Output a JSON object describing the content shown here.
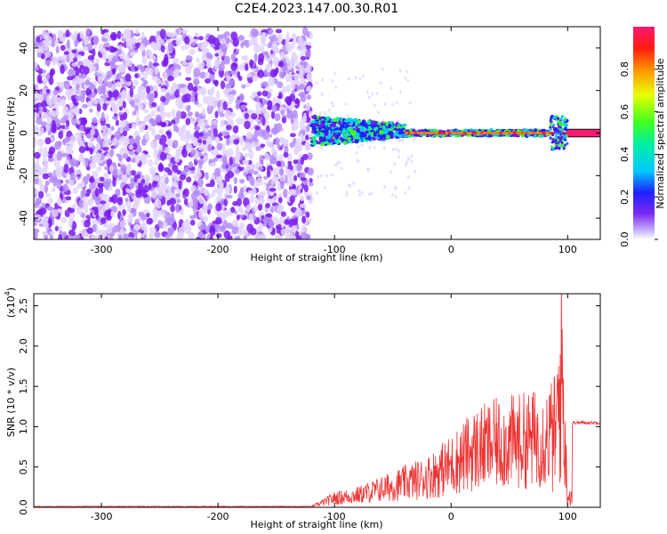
{
  "title": "C2E4.2023.147.00.30.R01",
  "colors": {
    "snr_line": "#ee3333",
    "axis": "#000000",
    "background": "#ffffff"
  },
  "chart_data": [
    {
      "type": "heatmap",
      "title": "C2E4.2023.147.00.30.R01",
      "xlabel": "Height of straight line (km)",
      "ylabel": "Frequency (Hz)",
      "xlim": [
        -358,
        128
      ],
      "ylim": [
        -50,
        50
      ],
      "x_ticks": [
        -300,
        -200,
        -100,
        0,
        100
      ],
      "y_ticks": [
        -40,
        -20,
        0,
        20,
        40
      ],
      "colorbar": {
        "label": "Normalized spectral amplitude",
        "range": [
          0.0,
          1.0
        ],
        "ticks": [
          "0.0",
          "0.2",
          "0.4",
          "0.6",
          "0.8"
        ],
        "colormap": "rainbow (purple-blue-cyan-green-yellow-red-magenta)"
      },
      "description_regions": [
        {
          "x_range": [
            -358,
            -120
          ],
          "freq_range": [
            -50,
            48
          ],
          "amplitude": "low (0.0-0.2), broadband noise"
        },
        {
          "x_range": [
            -120,
            -40
          ],
          "freq_range": [
            -8,
            8
          ],
          "amplitude": "0.2-0.6, scattered signal near 0 Hz"
        },
        {
          "x_range": [
            -40,
            85
          ],
          "freq_range": [
            -2,
            2
          ],
          "amplitude": "0.8-1.0, narrow line at 0 Hz"
        },
        {
          "x_range": [
            85,
            100
          ],
          "freq_range": [
            -8,
            8
          ],
          "amplitude": "0.2-0.6, broadened"
        },
        {
          "x_range": [
            100,
            128
          ],
          "freq_range": [
            -1,
            1
          ],
          "amplitude": "1.0, narrow line at 0 Hz"
        }
      ]
    },
    {
      "type": "line",
      "xlabel": "Height of straight line (km)",
      "ylabel": "SNR (10 * v/v)",
      "y_exponent_label": "(x10^4)",
      "xlim": [
        -358,
        128
      ],
      "ylim": [
        0.0,
        2.65
      ],
      "x_ticks": [
        -300,
        -200,
        -100,
        0,
        100
      ],
      "y_ticks": [
        "0.0",
        "0.5",
        "1.0",
        "1.5",
        "2.0",
        "2.5"
      ],
      "series": [
        {
          "x": [
            -358,
            -300,
            -200,
            -120,
            -100,
            -80,
            -60,
            -40,
            -20,
            0,
            20,
            40,
            60,
            80,
            90,
            95,
            100,
            105,
            128
          ],
          "y": [
            0.01,
            0.01,
            0.01,
            0.01,
            0.15,
            0.2,
            0.3,
            0.4,
            0.5,
            0.7,
            0.95,
            1.05,
            1.1,
            1.15,
            1.3,
            2.5,
            0.1,
            1.05,
            1.05
          ]
        }
      ]
    }
  ]
}
